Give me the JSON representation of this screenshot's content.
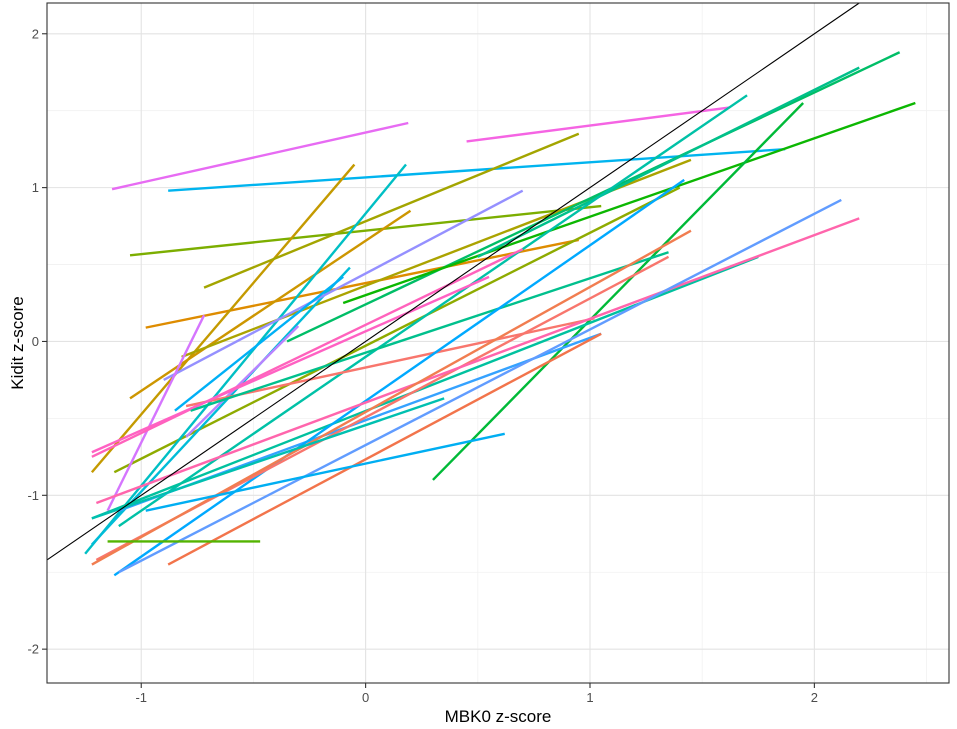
{
  "chart_data": {
    "type": "line",
    "xlabel": "MBK0 z-score",
    "ylabel": "Kidit z-score",
    "xlim": [
      -1.42,
      2.6
    ],
    "ylim": [
      -2.22,
      2.2
    ],
    "x_ticks": [
      -1,
      0,
      1,
      2
    ],
    "x_tick_labels": [
      "-1",
      "0",
      "1",
      "2"
    ],
    "y_ticks": [
      -2,
      -1,
      0,
      1,
      2
    ],
    "y_tick_labels": [
      "-2",
      "-1",
      "0",
      "1",
      "2"
    ],
    "grid": true,
    "legend": "none",
    "reference_line": {
      "x": [
        -1.42,
        2.2
      ],
      "y": [
        -1.42,
        2.2
      ],
      "color": "#000000"
    },
    "series": [
      {
        "x": [
          -1.13,
          0.19
        ],
        "y": [
          0.99,
          1.42
        ],
        "color": "#E76BF3"
      },
      {
        "x": [
          0.45,
          1.62
        ],
        "y": [
          1.3,
          1.52
        ],
        "color": "#F564E3"
      },
      {
        "x": [
          -0.88,
          1.87
        ],
        "y": [
          0.98,
          1.25
        ],
        "color": "#00B4EF"
      },
      {
        "x": [
          -1.05,
          1.05
        ],
        "y": [
          0.56,
          0.88
        ],
        "color": "#7CAE00"
      },
      {
        "x": [
          -0.98,
          0.95
        ],
        "y": [
          0.09,
          0.66
        ],
        "color": "#DE8C00"
      },
      {
        "x": [
          -1.22,
          -0.05
        ],
        "y": [
          -0.85,
          1.15
        ],
        "color": "#C49A00"
      },
      {
        "x": [
          -0.72,
          0.95
        ],
        "y": [
          0.35,
          1.35
        ],
        "color": "#A3A500"
      },
      {
        "x": [
          -1.05,
          0.2
        ],
        "y": [
          -0.37,
          0.85
        ],
        "color": "#CD9600"
      },
      {
        "x": [
          -0.82,
          1.45
        ],
        "y": [
          -0.1,
          1.18
        ],
        "color": "#ABA300"
      },
      {
        "x": [
          -1.12,
          1.4
        ],
        "y": [
          -0.85,
          1.0
        ],
        "color": "#8EAB00"
      },
      {
        "x": [
          -0.35,
          2.38
        ],
        "y": [
          0.0,
          1.88
        ],
        "color": "#00BE67"
      },
      {
        "x": [
          -0.1,
          2.45
        ],
        "y": [
          0.25,
          1.55
        ],
        "color": "#0CB702"
      },
      {
        "x": [
          0.5,
          2.2
        ],
        "y": [
          0.55,
          1.78
        ],
        "color": "#00C08B"
      },
      {
        "x": [
          0.3,
          1.95
        ],
        "y": [
          -0.9,
          1.55
        ],
        "color": "#00BA38"
      },
      {
        "x": [
          -1.1,
          1.7
        ],
        "y": [
          -1.2,
          1.6
        ],
        "color": "#00C1A7"
      },
      {
        "x": [
          -1.25,
          0.18
        ],
        "y": [
          -1.38,
          1.15
        ],
        "color": "#00BFC4"
      },
      {
        "x": [
          -1.22,
          -0.07
        ],
        "y": [
          -1.32,
          0.48
        ],
        "color": "#00BCD8"
      },
      {
        "x": [
          -0.9,
          0.7
        ],
        "y": [
          -0.25,
          0.98
        ],
        "color": "#9590FF"
      },
      {
        "x": [
          -0.8,
          -0.3
        ],
        "y": [
          -0.62,
          0.1
        ],
        "color": "#B983FF"
      },
      {
        "x": [
          -1.15,
          -0.72
        ],
        "y": [
          -1.1,
          0.17
        ],
        "color": "#D575FE"
      },
      {
        "x": [
          -1.22,
          0.7
        ],
        "y": [
          -0.75,
          0.6
        ],
        "color": "#FF62BC"
      },
      {
        "x": [
          -0.8,
          1.02
        ],
        "y": [
          -0.42,
          0.15
        ],
        "color": "#F8766D"
      },
      {
        "x": [
          -1.22,
          1.75
        ],
        "y": [
          -1.15,
          0.55
        ],
        "color": "#00C19F"
      },
      {
        "x": [
          -0.78,
          1.35
        ],
        "y": [
          -0.45,
          0.58
        ],
        "color": "#00C08D"
      },
      {
        "x": [
          -1.1,
          1.05
        ],
        "y": [
          -1.1,
          0.05
        ],
        "color": "#35A2FF"
      },
      {
        "x": [
          -1.22,
          0.55
        ],
        "y": [
          -0.72,
          0.42
        ],
        "color": "#FF61C3"
      },
      {
        "x": [
          -0.85,
          -0.1
        ],
        "y": [
          -0.45,
          0.42
        ],
        "color": "#00B0F6"
      },
      {
        "x": [
          -1.12,
          1.42
        ],
        "y": [
          -1.52,
          1.05
        ],
        "color": "#00A9FF"
      },
      {
        "x": [
          -1.2,
          1.35
        ],
        "y": [
          -1.42,
          0.55
        ],
        "color": "#F8766D"
      },
      {
        "x": [
          -1.2,
          2.2
        ],
        "y": [
          -1.05,
          0.8
        ],
        "color": "#FF65AC"
      },
      {
        "x": [
          -1.1,
          2.12
        ],
        "y": [
          -1.5,
          0.92
        ],
        "color": "#619CFF"
      },
      {
        "x": [
          -1.22,
          1.45
        ],
        "y": [
          -1.45,
          0.72
        ],
        "color": "#F17D50"
      },
      {
        "x": [
          -0.88,
          1.05
        ],
        "y": [
          -1.45,
          0.05
        ],
        "color": "#F2744B"
      },
      {
        "x": [
          -1.22,
          0.35
        ],
        "y": [
          -1.15,
          -0.37
        ],
        "color": "#00C0B0"
      },
      {
        "x": [
          -0.98,
          0.62
        ],
        "y": [
          -1.1,
          -0.6
        ],
        "color": "#00AEF2"
      },
      {
        "x": [
          -1.15,
          -0.47
        ],
        "y": [
          -1.3,
          -1.3
        ],
        "color": "#53B400"
      }
    ]
  }
}
